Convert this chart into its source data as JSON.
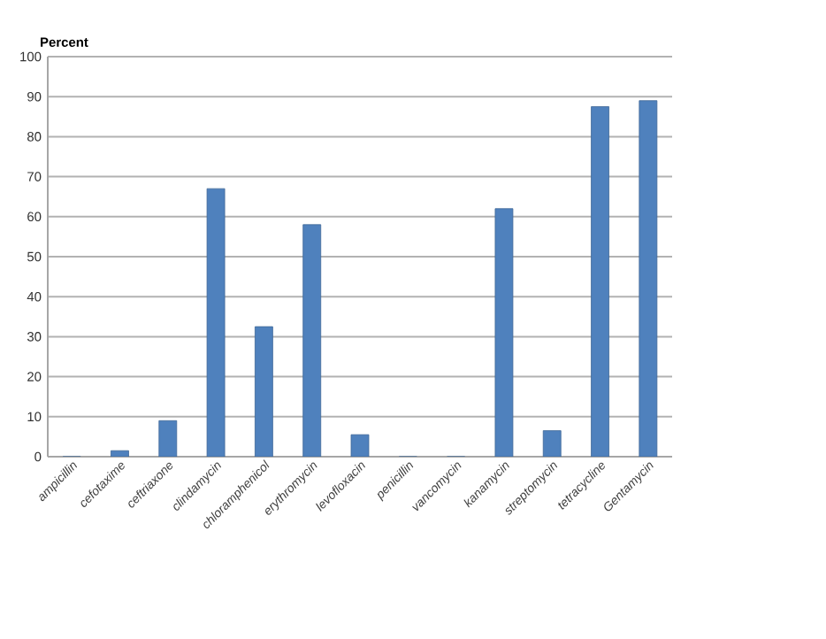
{
  "chart_data": {
    "type": "bar",
    "ylabel": "Percent",
    "categories": [
      "ampicillin",
      "cefotaxime",
      "ceftriaxone",
      "clindamycin",
      "chloramphenicol",
      "erythromycin",
      "levofloxacin",
      "penicillin",
      "vancomycin",
      "kanamycin",
      "streptomycin",
      "tetracycline",
      "Gentamycin"
    ],
    "values": [
      0,
      1.5,
      9,
      67,
      32.5,
      58,
      5.5,
      0,
      0,
      62,
      6.5,
      87.5,
      89
    ],
    "color": "#4f81bd",
    "ylim": [
      0,
      100
    ],
    "yticks": [
      0,
      10,
      20,
      30,
      40,
      50,
      60,
      70,
      80,
      90,
      100
    ],
    "grid": "y"
  }
}
